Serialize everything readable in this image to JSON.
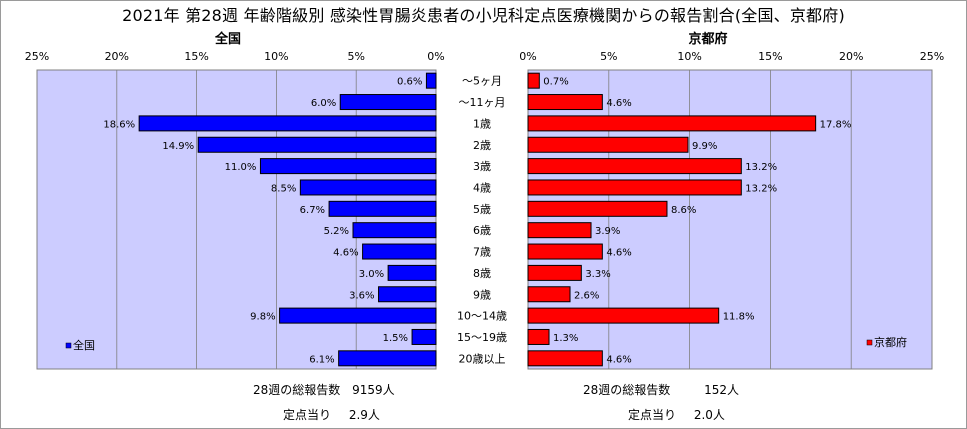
{
  "title": "2021年 第28週 年齢階級別 感染性胃腸炎患者の小児科定点医療機関からの報告割合(全国、京都府)",
  "chart_data": {
    "type": "bar",
    "orientation": "horizontal-butterfly",
    "categories": [
      "～5ヶ月",
      "～11ヶ月",
      "1歳",
      "2歳",
      "3歳",
      "4歳",
      "5歳",
      "6歳",
      "7歳",
      "8歳",
      "9歳",
      "10～14歳",
      "15～19歳",
      "20歳以上"
    ],
    "series": [
      {
        "name": "全国",
        "side": "left",
        "color": "#0000ff",
        "values": [
          0.6,
          6.0,
          18.6,
          14.9,
          11.0,
          8.5,
          6.7,
          5.2,
          4.6,
          3.0,
          3.6,
          9.8,
          1.5,
          6.1
        ],
        "labels": [
          "0.6%",
          "6.0%",
          "18.6%",
          "14.9%",
          "11.0%",
          "8.5%",
          "6.7%",
          "5.2%",
          "4.6%",
          "3.0%",
          "3.6%",
          "9.8%",
          "1.5%",
          "6.1%"
        ]
      },
      {
        "name": "京都府",
        "side": "right",
        "color": "#ff0000",
        "values": [
          0.7,
          4.6,
          17.8,
          9.9,
          13.2,
          13.2,
          8.6,
          3.9,
          4.6,
          3.3,
          2.6,
          11.8,
          1.3,
          4.6
        ],
        "labels": [
          "0.7%",
          "4.6%",
          "17.8%",
          "9.9%",
          "13.2%",
          "13.2%",
          "8.6%",
          "3.9%",
          "4.6%",
          "3.3%",
          "2.6%",
          "11.8%",
          "1.3%",
          "4.6%"
        ]
      }
    ],
    "left_title": "全国",
    "right_title": "京都府",
    "left_ticks": [
      "25%",
      "20%",
      "15%",
      "10%",
      "5%",
      "0%"
    ],
    "right_ticks": [
      "0%",
      "5%",
      "10%",
      "15%",
      "20%",
      "25%"
    ],
    "xlim": [
      0,
      25
    ],
    "grid": true,
    "plot_background": "#ccccff",
    "legend_left": "全国",
    "legend_right": "京都府",
    "legend_placement": "bottom-left / bottom-right"
  },
  "footer": {
    "left": {
      "total_label": "28週の総報告数",
      "total_value": "9159人",
      "per_label": "定点当り",
      "per_value": "2.9人"
    },
    "right": {
      "total_label": "28週の総報告数",
      "total_value": "152人",
      "per_label": "定点当り",
      "per_value": "2.0人"
    }
  }
}
